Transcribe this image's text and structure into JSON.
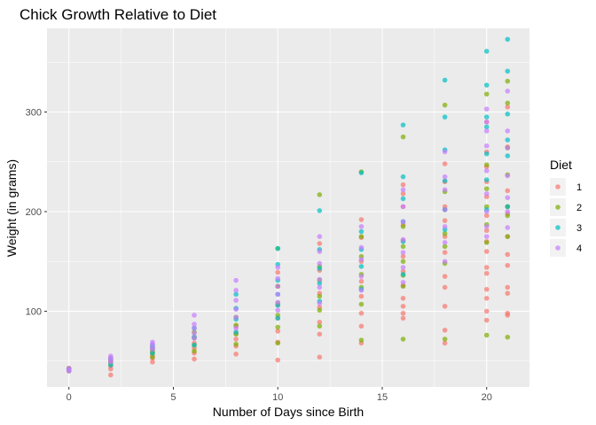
{
  "chart_data": {
    "type": "scatter",
    "title": "Chick Growth Relative to Diet",
    "xlabel": "Number of Days since Birth",
    "ylabel": "Weight (in grams)",
    "xlim": [
      -1.05,
      22.05
    ],
    "ylim": [
      24,
      384
    ],
    "x_ticks": [
      0,
      5,
      10,
      15,
      20
    ],
    "y_ticks": [
      100,
      200,
      300
    ],
    "grid": true,
    "legend": {
      "title": "Diet",
      "position": "right"
    },
    "colors": {
      "1": "#F8766D",
      "2": "#7CAE00",
      "3": "#00BFC4",
      "4": "#C77CFF"
    },
    "series": [
      {
        "name": "1",
        "color": "#F8766D",
        "points": [
          [
            0,
            41
          ],
          [
            0,
            42
          ],
          [
            0,
            43
          ],
          [
            2,
            36
          ],
          [
            2,
            42
          ],
          [
            2,
            45
          ],
          [
            2,
            49
          ],
          [
            2,
            51
          ],
          [
            4,
            49
          ],
          [
            4,
            53
          ],
          [
            4,
            56
          ],
          [
            4,
            59
          ],
          [
            4,
            62
          ],
          [
            6,
            52
          ],
          [
            6,
            58
          ],
          [
            6,
            63
          ],
          [
            6,
            68
          ],
          [
            6,
            74
          ],
          [
            8,
            57
          ],
          [
            8,
            65
          ],
          [
            8,
            72
          ],
          [
            8,
            78
          ],
          [
            8,
            85
          ],
          [
            10,
            51
          ],
          [
            10,
            69
          ],
          [
            10,
            80
          ],
          [
            10,
            93
          ],
          [
            10,
            106
          ],
          [
            10,
            125
          ],
          [
            10,
            139
          ],
          [
            12,
            54
          ],
          [
            12,
            77
          ],
          [
            12,
            89
          ],
          [
            12,
            104
          ],
          [
            12,
            118
          ],
          [
            12,
            141
          ],
          [
            12,
            168
          ],
          [
            14,
            68
          ],
          [
            14,
            85
          ],
          [
            14,
            98
          ],
          [
            14,
            115
          ],
          [
            14,
            130
          ],
          [
            14,
            150
          ],
          [
            14,
            174
          ],
          [
            14,
            192
          ],
          [
            16,
            93
          ],
          [
            16,
            98
          ],
          [
            16,
            105
          ],
          [
            16,
            113
          ],
          [
            16,
            126
          ],
          [
            16,
            140
          ],
          [
            16,
            155
          ],
          [
            16,
            171
          ],
          [
            16,
            187
          ],
          [
            16,
            205
          ],
          [
            16,
            218
          ],
          [
            16,
            227
          ],
          [
            18,
            68
          ],
          [
            18,
            81
          ],
          [
            18,
            105
          ],
          [
            18,
            124
          ],
          [
            18,
            135
          ],
          [
            18,
            159
          ],
          [
            18,
            175
          ],
          [
            18,
            191
          ],
          [
            18,
            205
          ],
          [
            18,
            230
          ],
          [
            18,
            248
          ],
          [
            20,
            91
          ],
          [
            20,
            100
          ],
          [
            20,
            113
          ],
          [
            20,
            122
          ],
          [
            20,
            138
          ],
          [
            20,
            144
          ],
          [
            20,
            160
          ],
          [
            20,
            170
          ],
          [
            20,
            181
          ],
          [
            20,
            196
          ],
          [
            20,
            215
          ],
          [
            20,
            230
          ],
          [
            20,
            245
          ],
          [
            20,
            260
          ],
          [
            20,
            290
          ],
          [
            21,
            96
          ],
          [
            21,
            98
          ],
          [
            21,
            118
          ],
          [
            21,
            124
          ],
          [
            21,
            146
          ],
          [
            21,
            157
          ],
          [
            21,
            175
          ],
          [
            21,
            198
          ],
          [
            21,
            205
          ],
          [
            21,
            221
          ],
          [
            21,
            265
          ],
          [
            21,
            305
          ]
        ]
      },
      {
        "name": "2",
        "color": "#7CAE00",
        "points": [
          [
            0,
            40
          ],
          [
            0,
            41
          ],
          [
            0,
            42
          ],
          [
            2,
            47
          ],
          [
            2,
            49
          ],
          [
            2,
            50
          ],
          [
            2,
            53
          ],
          [
            4,
            54
          ],
          [
            4,
            58
          ],
          [
            4,
            61
          ],
          [
            4,
            64
          ],
          [
            6,
            60
          ],
          [
            6,
            66
          ],
          [
            6,
            73
          ],
          [
            6,
            79
          ],
          [
            8,
            67
          ],
          [
            8,
            77
          ],
          [
            8,
            86
          ],
          [
            8,
            94
          ],
          [
            10,
            68
          ],
          [
            10,
            84
          ],
          [
            10,
            96
          ],
          [
            10,
            108
          ],
          [
            10,
            125
          ],
          [
            10,
            163
          ],
          [
            12,
            85
          ],
          [
            12,
            101
          ],
          [
            12,
            115
          ],
          [
            12,
            131
          ],
          [
            12,
            145
          ],
          [
            12,
            217
          ],
          [
            14,
            71
          ],
          [
            14,
            107
          ],
          [
            14,
            124
          ],
          [
            14,
            137
          ],
          [
            14,
            155
          ],
          [
            14,
            175
          ],
          [
            14,
            240
          ],
          [
            16,
            72
          ],
          [
            16,
            125
          ],
          [
            16,
            136
          ],
          [
            16,
            150
          ],
          [
            16,
            165
          ],
          [
            16,
            185
          ],
          [
            16,
            275
          ],
          [
            18,
            72
          ],
          [
            18,
            148
          ],
          [
            18,
            165
          ],
          [
            18,
            178
          ],
          [
            18,
            202
          ],
          [
            18,
            220
          ],
          [
            18,
            307
          ],
          [
            20,
            76
          ],
          [
            20,
            169
          ],
          [
            20,
            187
          ],
          [
            20,
            205
          ],
          [
            20,
            223
          ],
          [
            20,
            247
          ],
          [
            20,
            318
          ],
          [
            21,
            74
          ],
          [
            21,
            175
          ],
          [
            21,
            196
          ],
          [
            21,
            205
          ],
          [
            21,
            237
          ],
          [
            21,
            264
          ],
          [
            21,
            309
          ],
          [
            21,
            331
          ]
        ]
      },
      {
        "name": "3",
        "color": "#00BFC4",
        "points": [
          [
            0,
            41
          ],
          [
            0,
            42
          ],
          [
            2,
            46
          ],
          [
            2,
            52
          ],
          [
            4,
            58
          ],
          [
            4,
            63
          ],
          [
            4,
            66
          ],
          [
            6,
            66
          ],
          [
            6,
            74
          ],
          [
            6,
            83
          ],
          [
            8,
            79
          ],
          [
            8,
            92
          ],
          [
            8,
            103
          ],
          [
            8,
            117
          ],
          [
            10,
            93
          ],
          [
            10,
            106
          ],
          [
            10,
            117
          ],
          [
            10,
            131
          ],
          [
            10,
            147
          ],
          [
            10,
            163
          ],
          [
            12,
            110
          ],
          [
            12,
            128
          ],
          [
            12,
            143
          ],
          [
            12,
            162
          ],
          [
            12,
            201
          ],
          [
            14,
            122
          ],
          [
            14,
            145
          ],
          [
            14,
            162
          ],
          [
            14,
            180
          ],
          [
            14,
            239
          ],
          [
            16,
            137
          ],
          [
            16,
            170
          ],
          [
            16,
            190
          ],
          [
            16,
            213
          ],
          [
            16,
            235
          ],
          [
            16,
            287
          ],
          [
            18,
            182
          ],
          [
            18,
            202
          ],
          [
            18,
            231
          ],
          [
            18,
            262
          ],
          [
            18,
            295
          ],
          [
            18,
            332
          ],
          [
            20,
            202
          ],
          [
            20,
            232
          ],
          [
            20,
            258
          ],
          [
            20,
            285
          ],
          [
            20,
            295
          ],
          [
            20,
            327
          ],
          [
            20,
            361
          ],
          [
            21,
            205
          ],
          [
            21,
            256
          ],
          [
            21,
            272
          ],
          [
            21,
            298
          ],
          [
            21,
            341
          ],
          [
            21,
            373
          ]
        ]
      },
      {
        "name": "4",
        "color": "#C77CFF",
        "points": [
          [
            0,
            40
          ],
          [
            0,
            41
          ],
          [
            0,
            42
          ],
          [
            2,
            49
          ],
          [
            2,
            51
          ],
          [
            2,
            53
          ],
          [
            2,
            55
          ],
          [
            4,
            62
          ],
          [
            4,
            64
          ],
          [
            4,
            67
          ],
          [
            4,
            69
          ],
          [
            6,
            73
          ],
          [
            6,
            78
          ],
          [
            6,
            83
          ],
          [
            6,
            87
          ],
          [
            6,
            96
          ],
          [
            8,
            83
          ],
          [
            8,
            94
          ],
          [
            8,
            102
          ],
          [
            8,
            111
          ],
          [
            8,
            121
          ],
          [
            8,
            131
          ],
          [
            10,
            101
          ],
          [
            10,
            109
          ],
          [
            10,
            117
          ],
          [
            10,
            125
          ],
          [
            10,
            133
          ],
          [
            10,
            144
          ],
          [
            12,
            108
          ],
          [
            12,
            124
          ],
          [
            12,
            132
          ],
          [
            12,
            148
          ],
          [
            12,
            160
          ],
          [
            12,
            175
          ],
          [
            14,
            121
          ],
          [
            14,
            135
          ],
          [
            14,
            152
          ],
          [
            14,
            164
          ],
          [
            14,
            185
          ],
          [
            16,
            129
          ],
          [
            16,
            144
          ],
          [
            16,
            159
          ],
          [
            16,
            172
          ],
          [
            16,
            190
          ],
          [
            16,
            205
          ],
          [
            16,
            222
          ],
          [
            18,
            150
          ],
          [
            18,
            169
          ],
          [
            18,
            185
          ],
          [
            18,
            202
          ],
          [
            18,
            222
          ],
          [
            18,
            235
          ],
          [
            18,
            260
          ],
          [
            20,
            175
          ],
          [
            20,
            185
          ],
          [
            20,
            200
          ],
          [
            20,
            218
          ],
          [
            20,
            241
          ],
          [
            20,
            266
          ],
          [
            20,
            281
          ],
          [
            20,
            290
          ],
          [
            20,
            303
          ],
          [
            21,
            184
          ],
          [
            21,
            200
          ],
          [
            21,
            214
          ],
          [
            21,
            236
          ],
          [
            21,
            264
          ],
          [
            21,
            281
          ],
          [
            21,
            321
          ]
        ]
      }
    ]
  }
}
